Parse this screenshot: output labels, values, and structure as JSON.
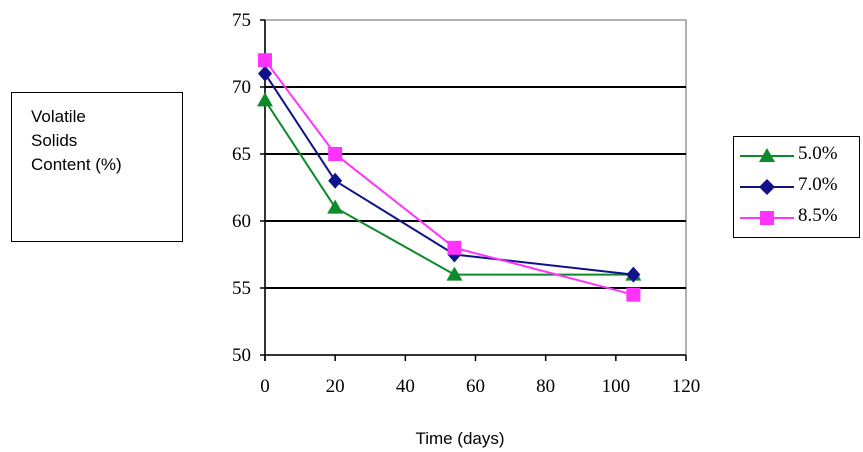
{
  "chart_data": {
    "type": "line",
    "title": "",
    "xlabel": "Time (days)",
    "ylabel_lines": [
      "Volatile",
      "Solids",
      "Content (%)"
    ],
    "xlim": [
      0,
      120
    ],
    "ylim": [
      50,
      75
    ],
    "x_ticks": [
      "0",
      "20",
      "40",
      "60",
      "80",
      "100",
      "120"
    ],
    "y_ticks": [
      "75",
      "70",
      "65",
      "60",
      "55",
      "50"
    ],
    "grid": "horizontal",
    "legend_position": "right",
    "series": [
      {
        "name": "5.0%",
        "color": "#0f8a2a",
        "marker": "triangle",
        "x": [
          0,
          20,
          54,
          105
        ],
        "y": [
          69,
          61,
          56,
          56
        ]
      },
      {
        "name": "7.0%",
        "color": "#10128a",
        "marker": "diamond",
        "x": [
          0,
          20,
          54,
          105
        ],
        "y": [
          71,
          63,
          57.5,
          56
        ]
      },
      {
        "name": "8.5%",
        "color": "#ff33ff",
        "marker": "square",
        "x": [
          0,
          20,
          54,
          105
        ],
        "y": [
          72,
          65,
          58,
          54.5
        ]
      }
    ]
  }
}
